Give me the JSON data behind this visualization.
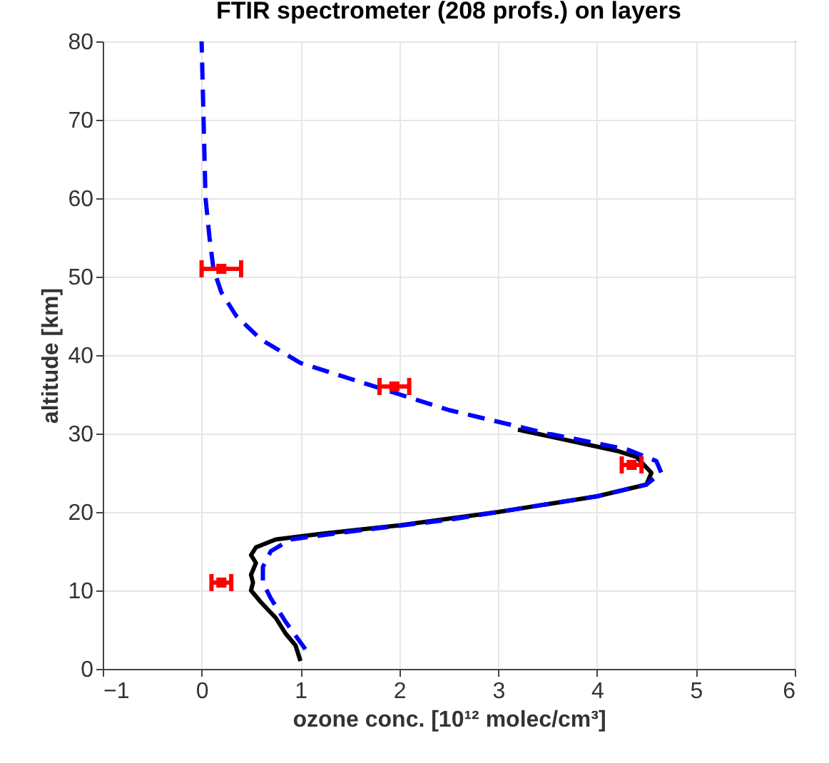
{
  "chart_data": {
    "type": "line",
    "title": "FTIR spectrometer (208 profs.) on layers",
    "xlabel": "ozone conc. [10¹² molec/cm³]",
    "ylabel": "altitude [km]",
    "xlim": [
      -1,
      6
    ],
    "xticks": [
      -1,
      0,
      1,
      2,
      3,
      4,
      5,
      6
    ],
    "ylim": [
      0,
      80
    ],
    "yticks": [
      0,
      10,
      20,
      30,
      40,
      50,
      60,
      70,
      80
    ],
    "grid": true,
    "series": [
      {
        "color": "#000000",
        "line_style": "solid",
        "x": [
          1.0,
          0.95,
          0.85,
          0.75,
          0.6,
          0.5,
          0.52,
          0.5,
          0.55,
          0.5,
          0.55,
          0.75,
          1.2,
          2.0,
          3.0,
          3.5,
          4.0,
          4.5,
          4.55,
          4.4,
          4.2,
          3.2
        ],
        "values": [
          1,
          3,
          4.5,
          6.5,
          8.5,
          10,
          11,
          12,
          13.5,
          14.5,
          15.5,
          16.5,
          17.2,
          18.3,
          20,
          21,
          22,
          23.5,
          25,
          27,
          27.8,
          30.5
        ]
      },
      {
        "color": "#0000ff",
        "line_style": "dashed",
        "x": [
          1.05,
          0.85,
          0.7,
          0.62,
          0.62,
          0.7,
          0.9,
          1.5,
          2.5,
          3.0,
          3.5,
          4.0,
          4.5,
          4.65,
          4.6,
          4.3,
          3.5,
          3.0,
          2.5,
          2.0,
          1.5,
          1.0,
          0.6,
          0.35,
          0.2,
          0.12,
          0.08,
          0.04,
          0.02,
          0.0
        ],
        "values": [
          2.5,
          6,
          9,
          11,
          13,
          15,
          16.5,
          17.5,
          19,
          20,
          21,
          22,
          23.5,
          25,
          26.5,
          28,
          30,
          31.5,
          33,
          35,
          37,
          39,
          42,
          45,
          48,
          51,
          55,
          60,
          70,
          80
        ]
      },
      {
        "type": "scatter",
        "color": "#ff0000",
        "marker": "square",
        "x": [
          0.2,
          1.95,
          0.2,
          4.35
        ],
        "values": [
          51,
          36,
          11,
          26
        ],
        "xerrors": [
          0.2,
          0.15,
          0.1,
          0.1
        ]
      }
    ]
  }
}
